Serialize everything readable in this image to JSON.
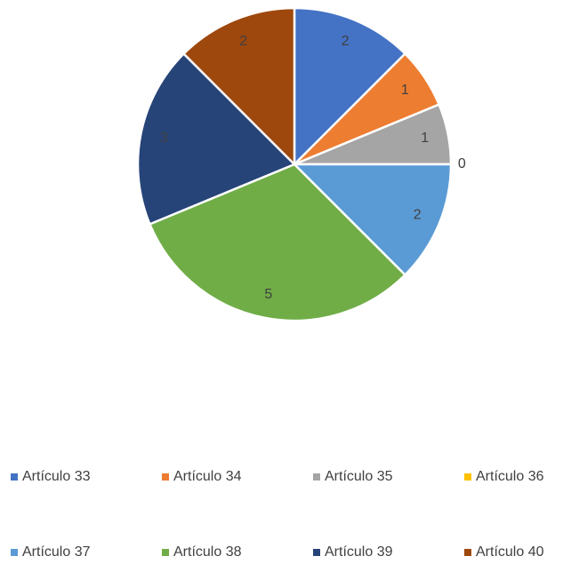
{
  "chart_data": {
    "type": "pie",
    "categories": [
      "Artículo 33",
      "Artículo 34",
      "Artículo 35",
      "Artículo 36",
      "Artículo 37",
      "Artículo 38",
      "Artículo 39",
      "Artículo 40"
    ],
    "values": [
      2,
      1,
      1,
      0,
      2,
      5,
      3,
      2
    ],
    "colors": [
      "#4472c4",
      "#ed7d31",
      "#a5a5a5",
      "#ffc000",
      "#5b9bd5",
      "#70ad47",
      "#264478",
      "#9e480e"
    ],
    "legend": "bottom"
  }
}
